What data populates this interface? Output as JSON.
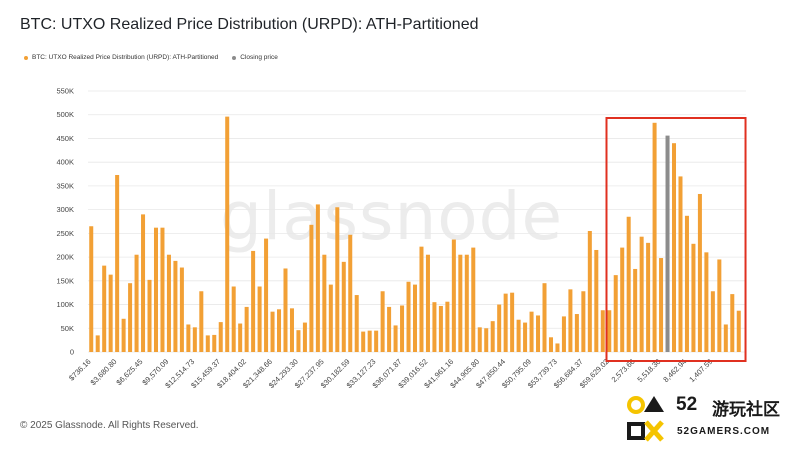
{
  "header": {
    "title": "BTC: UTXO Realized Price Distribution (URPD): ATH-Partitioned"
  },
  "watermark": "glassnode",
  "footer": {
    "copyright": "© 2025 Glassnode. All Rights Reserved."
  },
  "badge": {
    "number": "52",
    "text": "游玩社区",
    "subtext": "52GAMERS.COM"
  },
  "colors": {
    "bar": "#f2a035",
    "closing": "#8c8c8c",
    "highlight_box": "#e03020"
  },
  "chart_data": {
    "type": "bar",
    "title": "BTC: UTXO Realized Price Distribution (URPD): ATH-Partitioned",
    "legend": [
      {
        "name": "BTC: UTXO Realized Price Distribution (URPD): ATH-Partitioned",
        "color": "#f2a035"
      },
      {
        "name": "Closing price",
        "color": "#8c8c8c"
      }
    ],
    "legend_position": "top-left",
    "ylim": [
      0,
      550000
    ],
    "yticks": [
      {
        "value": 0,
        "label": "0"
      },
      {
        "value": 50000,
        "label": "50K"
      },
      {
        "value": 100000,
        "label": "100K"
      },
      {
        "value": 150000,
        "label": "150K"
      },
      {
        "value": 200000,
        "label": "200K"
      },
      {
        "value": 250000,
        "label": "250K"
      },
      {
        "value": 300000,
        "label": "300K"
      },
      {
        "value": 350000,
        "label": "350K"
      },
      {
        "value": 400000,
        "label": "400K"
      },
      {
        "value": 450000,
        "label": "450K"
      },
      {
        "value": 500000,
        "label": "500K"
      },
      {
        "value": 550000,
        "label": "550K"
      }
    ],
    "grid": true,
    "xtick_labels": [
      {
        "index": 0,
        "label": "$736.16"
      },
      {
        "index": 4,
        "label": "$3,680.80"
      },
      {
        "index": 8,
        "label": "$6,625.45"
      },
      {
        "index": 12,
        "label": "$9,570.09"
      },
      {
        "index": 16,
        "label": "$12,514.73"
      },
      {
        "index": 20,
        "label": "$15,459.37"
      },
      {
        "index": 24,
        "label": "$18,404.02"
      },
      {
        "index": 28,
        "label": "$21,348.66"
      },
      {
        "index": 32,
        "label": "$24,293.30"
      },
      {
        "index": 36,
        "label": "$27,237.95"
      },
      {
        "index": 40,
        "label": "$30,182.59"
      },
      {
        "index": 44,
        "label": "$33,127.23"
      },
      {
        "index": 48,
        "label": "$36,071.87"
      },
      {
        "index": 52,
        "label": "$39,016.52"
      },
      {
        "index": 56,
        "label": "$41,961.16"
      },
      {
        "index": 60,
        "label": "$44,905.80"
      },
      {
        "index": 64,
        "label": "$47,850.44"
      },
      {
        "index": 68,
        "label": "$50,795.09"
      },
      {
        "index": 72,
        "label": "$53,739.73"
      },
      {
        "index": 76,
        "label": "$56,684.37"
      },
      {
        "index": 80,
        "label": "$59,629.02"
      },
      {
        "index": 84,
        "label": "2,573.66"
      },
      {
        "index": 88,
        "label": "5,518.30"
      },
      {
        "index": 92,
        "label": "8,462.94"
      },
      {
        "index": 96,
        "label": "1,407.59"
      }
    ],
    "values": [
      265000,
      35000,
      182000,
      163000,
      373000,
      70000,
      145000,
      205000,
      290000,
      152000,
      262000,
      262000,
      205000,
      192000,
      178000,
      58000,
      52000,
      128000,
      35000,
      36000,
      63000,
      496000,
      138000,
      60000,
      95000,
      213000,
      138000,
      239000,
      85000,
      90000,
      176000,
      92000,
      46000,
      62000,
      268000,
      311000,
      205000,
      142000,
      305000,
      190000,
      247000,
      120000,
      43000,
      45000,
      45000,
      128000,
      95000,
      56000,
      98000,
      148000,
      142000,
      222000,
      205000,
      105000,
      97000,
      106000,
      237000,
      205000,
      205000,
      220000,
      52000,
      50000,
      65000,
      100000,
      123000,
      125000,
      68000,
      62000,
      85000,
      77000,
      145000,
      31000,
      18000,
      75000,
      132000,
      80000,
      128000,
      255000,
      215000,
      88000,
      88000,
      162000,
      220000,
      285000,
      175000,
      243000,
      230000,
      483000,
      198000,
      456000,
      440000,
      370000,
      287000,
      228000,
      333000,
      210000,
      128000,
      195000,
      58000,
      122000,
      87000
    ],
    "closing_index": 89,
    "highlight_start_index": 81,
    "highlight_end_index": 100
  }
}
